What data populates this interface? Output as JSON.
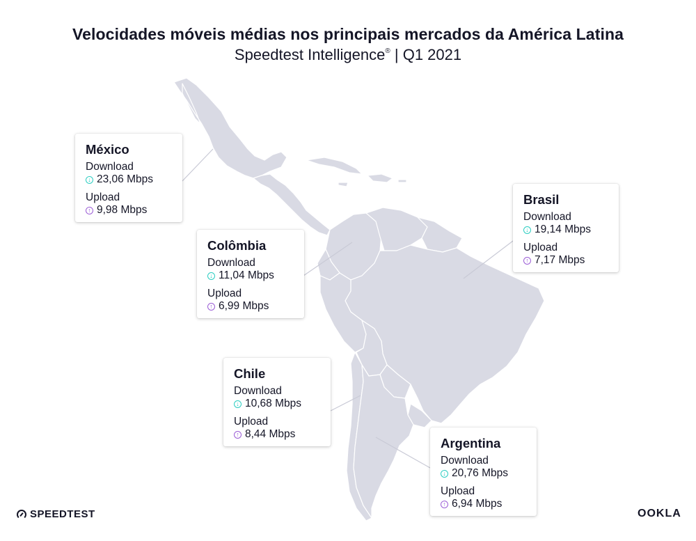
{
  "header": {
    "title": "Velocidades móveis médias nos principais mercados da América Latina",
    "subtitle": "Speedtest Intelligence",
    "subtitle_mark": "®",
    "subtitle_period": " | Q1 2021"
  },
  "colors": {
    "land": "#d9dae4",
    "border": "#ffffff",
    "download": "#2bcdc1",
    "upload": "#9b5dd6",
    "text": "#141526"
  },
  "markets": [
    {
      "country": "México",
      "download_label": "Download",
      "download": "23,06 Mbps",
      "upload_label": "Upload",
      "upload": "9,98 Mbps"
    },
    {
      "country": "Colômbia",
      "download_label": "Download",
      "download": "11,04 Mbps",
      "upload_label": "Upload",
      "upload": "6,99 Mbps"
    },
    {
      "country": "Brasil",
      "download_label": "Download",
      "download": "19,14 Mbps",
      "upload_label": "Upload",
      "upload": "7,17 Mbps"
    },
    {
      "country": "Chile",
      "download_label": "Download",
      "download": "10,68 Mbps",
      "upload_label": "Upload",
      "upload": "8,44 Mbps"
    },
    {
      "country": "Argentina",
      "download_label": "Download",
      "download": "20,76 Mbps",
      "upload_label": "Upload",
      "upload": "6,94 Mbps"
    }
  ],
  "footer": {
    "speedtest_logo": "SPEEDTEST",
    "ookla_logo": "OOKLA"
  }
}
